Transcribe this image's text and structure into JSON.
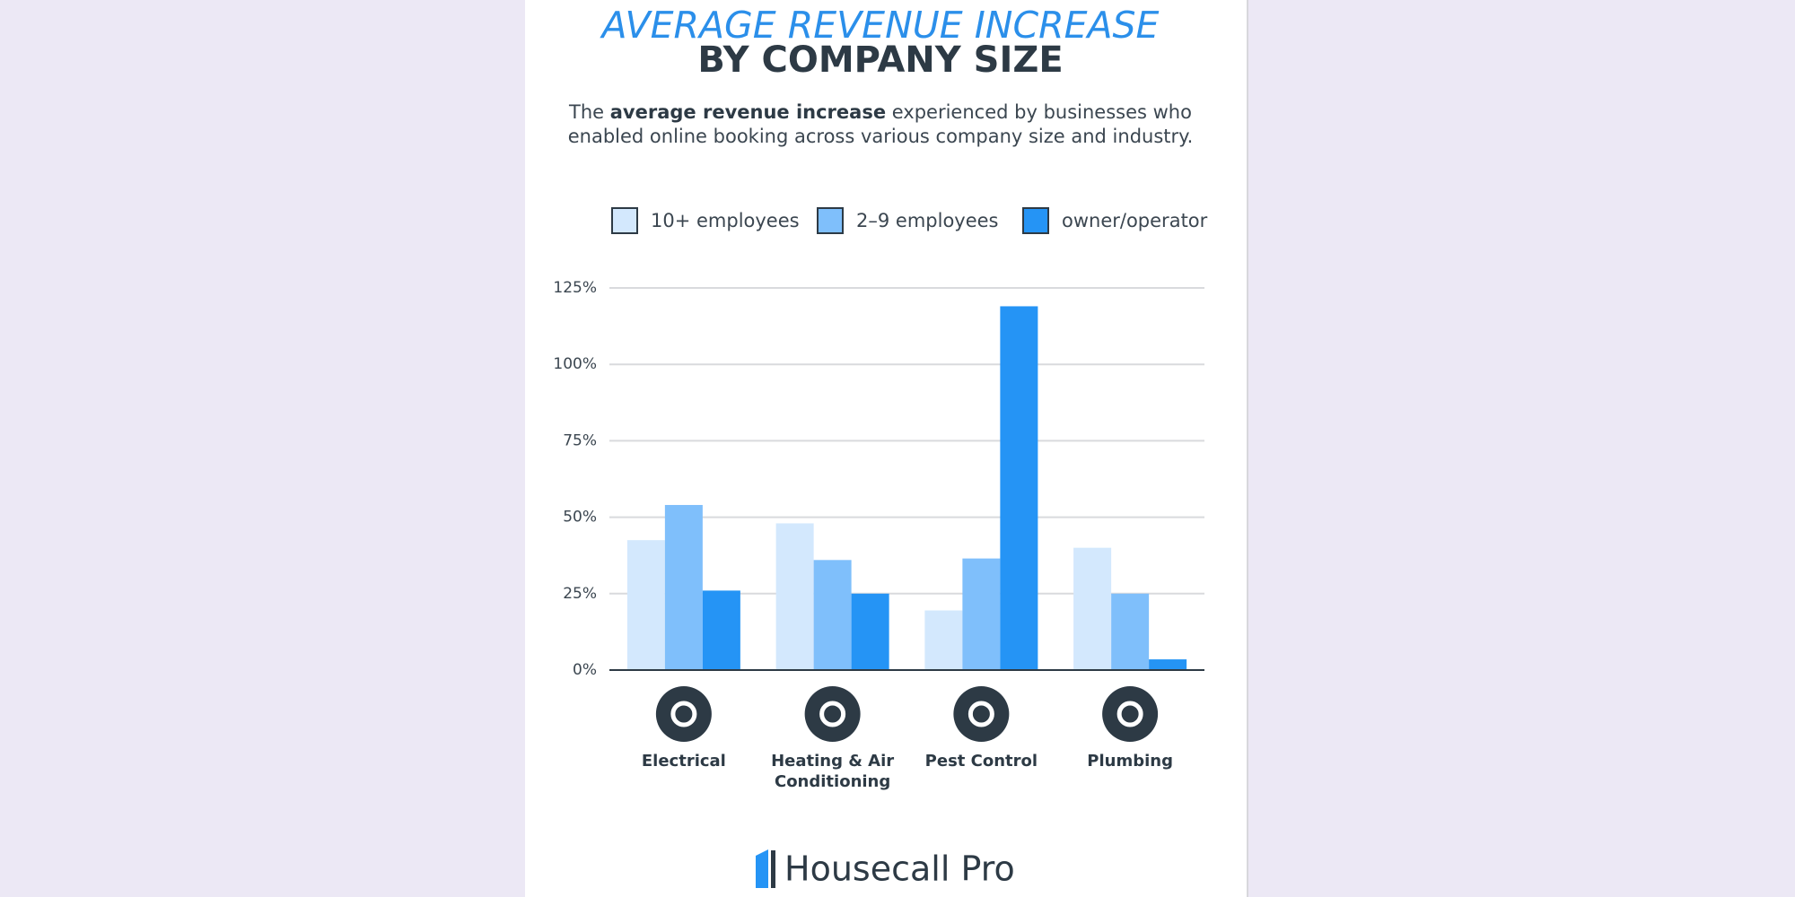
{
  "chart_data": {
    "type": "bar",
    "title": "AVERAGE REVENUE INCREASE",
    "title_line2": "BY COMPANY SIZE",
    "subtitle": {
      "before": "The ",
      "bold": "average revenue increase",
      "after": " experienced by businesses who enabled online booking across various company size and industry."
    },
    "categories": [
      "Electrical",
      "Heating & Air Conditioning",
      "Pest Control",
      "Plumbing"
    ],
    "series": [
      {
        "name": "10+ employees",
        "color": "#d3e8fd",
        "values": [
          42.5,
          48,
          19.5,
          40
        ]
      },
      {
        "name": "2–9 employees",
        "color": "#7fbffb",
        "values": [
          54,
          36,
          36.5,
          25
        ]
      },
      {
        "name": "owner/operator",
        "color": "#2594f5",
        "values": [
          26,
          25,
          119,
          3.5
        ]
      }
    ],
    "ylim": [
      0,
      125
    ],
    "yticks": [
      {
        "value": 0,
        "label": "0%"
      },
      {
        "value": 25,
        "label": "25%"
      },
      {
        "value": 50,
        "label": "50%"
      },
      {
        "value": 75,
        "label": "75%"
      },
      {
        "value": 100,
        "label": "100%"
      },
      {
        "value": 125,
        "label": "125%"
      }
    ],
    "grid": true,
    "legend": "top",
    "brand": "Housecall Pro"
  }
}
